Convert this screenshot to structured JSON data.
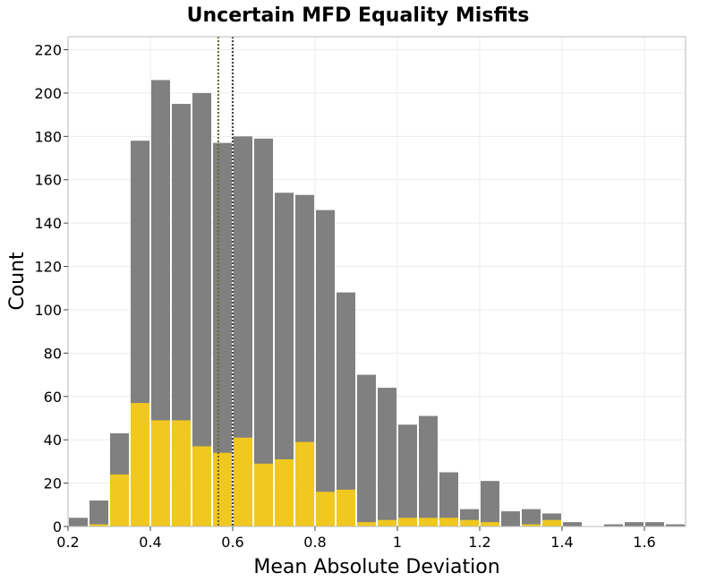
{
  "chart_data": {
    "type": "bar",
    "title": "Uncertain MFD Equality Misfits",
    "xlabel": "Mean Absolute Deviation",
    "ylabel": "Count",
    "xlim": [
      0.2,
      1.7
    ],
    "ylim": [
      0,
      226
    ],
    "bin_width": 0.05,
    "x_ticks": [
      "0.2",
      "0.4",
      "0.6",
      "0.8",
      "1",
      "1.2",
      "1.4",
      "1.6"
    ],
    "y_ticks": [
      "0",
      "20",
      "40",
      "60",
      "80",
      "100",
      "120",
      "140",
      "160",
      "180",
      "200",
      "220"
    ],
    "grid": true,
    "bin_starts": [
      0.2,
      0.25,
      0.3,
      0.35,
      0.4,
      0.45,
      0.5,
      0.55,
      0.6,
      0.65,
      0.7,
      0.75,
      0.8,
      0.85,
      0.9,
      0.95,
      1.0,
      1.05,
      1.1,
      1.15,
      1.2,
      1.25,
      1.3,
      1.35,
      1.4,
      1.45,
      1.5,
      1.55,
      1.6,
      1.65
    ],
    "series": [
      {
        "color": "#808080",
        "values": [
          4,
          12,
          43,
          178,
          206,
          195,
          200,
          177,
          180,
          179,
          154,
          153,
          146,
          108,
          70,
          64,
          47,
          51,
          25,
          8,
          21,
          7,
          8,
          6,
          2,
          0,
          1,
          2,
          2,
          1
        ]
      },
      {
        "color": "#f0c820",
        "values": [
          0,
          1,
          24,
          57,
          49,
          49,
          37,
          34,
          41,
          29,
          31,
          39,
          16,
          17,
          2,
          3,
          4,
          4,
          4,
          3,
          2,
          0,
          1,
          3,
          0,
          0,
          0,
          0,
          0,
          0
        ]
      }
    ],
    "vlines": [
      {
        "x": 0.565,
        "color": "#6b6b2a",
        "style": "dotted"
      },
      {
        "x": 0.6,
        "color": "#444444",
        "style": "dotted"
      }
    ]
  }
}
